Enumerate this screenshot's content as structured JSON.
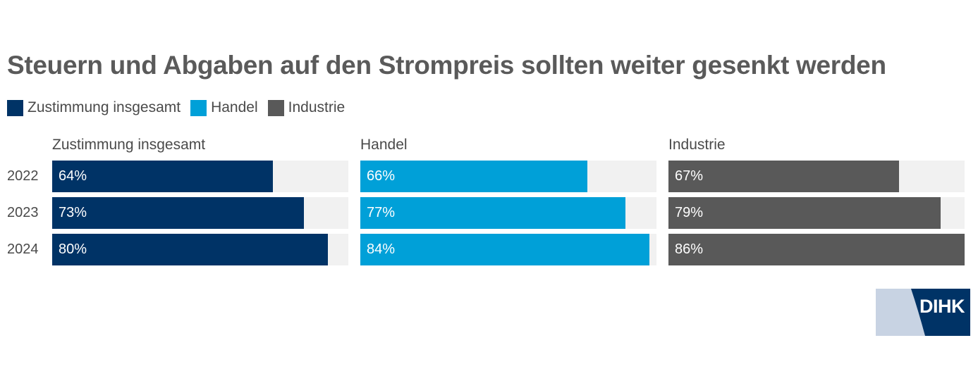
{
  "chart_data": {
    "type": "bar",
    "title": "Steuern und Abgaben auf den Strompreis sollten weiter gesenkt werden",
    "categories": [
      "2022",
      "2023",
      "2024"
    ],
    "value_format": "percent",
    "xlim": [
      0,
      86
    ],
    "legend_placement": "top-left",
    "series": [
      {
        "name": "Zustimmung insgesamt",
        "color": "#003366",
        "values": [
          64,
          73,
          80
        ],
        "labels": [
          "64%",
          "73%",
          "80%"
        ]
      },
      {
        "name": "Handel",
        "color": "#00a0d8",
        "values": [
          66,
          77,
          84
        ],
        "labels": [
          "66%",
          "77%",
          "84%"
        ]
      },
      {
        "name": "Industrie",
        "color": "#595959",
        "values": [
          67,
          79,
          86
        ],
        "labels": [
          "67%",
          "79%",
          "86%"
        ]
      }
    ]
  },
  "logo": {
    "text": "DIHK",
    "colors": {
      "light": "#c8d3e3",
      "dark": "#003366"
    }
  }
}
